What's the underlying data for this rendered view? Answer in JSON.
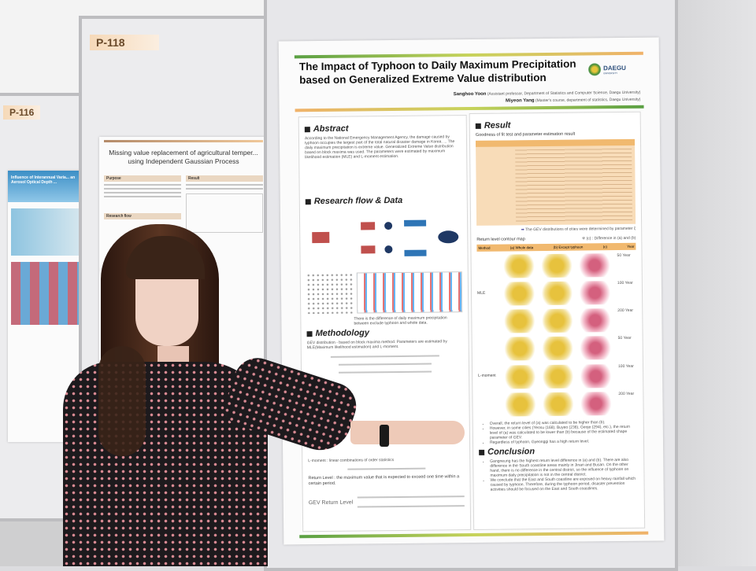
{
  "scene": {
    "colors": {
      "wall": "#dcdcdf",
      "board": "#ececee",
      "poster_accent_green": "#5aa043",
      "poster_accent_orange": "#f0b26a",
      "table_orange": "#f1b96f",
      "hair": "#3a2418",
      "dress": "#1d1a1d"
    }
  },
  "boards": [
    {
      "label": "P-116",
      "poster_title": "Influence of Interannual Varia... an Aerosol Optical Depth ..."
    },
    {
      "label": "P-118",
      "poster_title": "Missing value replacement of agricultural temper... using Independent Gaussian Process",
      "sections": [
        "Purpose",
        "Result",
        "Research flow"
      ]
    }
  ],
  "poster": {
    "title_line1": "The Impact of Typhoon to Daily Maximum Precipitation",
    "title_line2": "based on Generalized Extreme Value distribution",
    "logo": "DAEGU",
    "logo_sub": "UNIVERSITY",
    "author1_name": "Sanghoo Yoon",
    "author1_aff": "(Assistant professor, Department of Statistics and Computer Science, Daegu University)",
    "author2_name": "Miyeon Yang",
    "author2_aff": "(Master's course, department of statistics, Daegu University)",
    "sections": {
      "abstract": "Abstract",
      "abstract_text": "According to the National Emergency Management Agency, the damage caused by typhoon occupies the largest part of the total natural disaster damage in Korea. ... The daily maximum precipitation is extreme value. Generalized Extreme Value distribution based on block maxima was used. The parameters were estimated by maximum likelihood estimation (MLE) and L-moment estimation.",
      "research_flow": "Research flow & Data",
      "flow_note": "There is the difference of daily maximum precipitation between exclude typhoon and whole data.",
      "methodology": "Methodology",
      "gev": "GEV distribution - based on block maxima method. Parameters are estimated by MLE(Maximum likelihood estimation) and L-moment.",
      "lmoment": "L-moment : linear combinations of order statistics",
      "return_level": "Return Level : the maximum value that is expected to exceed one time within a certain period.",
      "gev_return_level": "GEV Return Level",
      "result": "Result",
      "gof": "Goodness of fit test and parameter estimation result",
      "gev_note": "The GEV distributions of cities were determined by parameter ξ",
      "contour": "Return level contour map",
      "contour_note": "※ (c) : Difference in (a) and (b)",
      "contour_headers": [
        "Method",
        "(a) Whole data",
        "(b) Except typhoon",
        "(c)",
        "Year"
      ],
      "methods": [
        "MLE",
        "L-moment"
      ],
      "years": [
        "50 Year",
        "100 Year",
        "200 Year",
        "50 Year",
        "100 Year",
        "200 Year"
      ],
      "bullets": [
        "Overall, the return level of (a) was calculated to be higher than (b).",
        "However, in some cities (Yeosu (168), Buyeo (236), Geoje (294), etc.), the return level of (a) was calculated to be lower than (b) because of the estimated shape parameter of GEV.",
        "Regardless of typhoon, Gyeonggi has a high return level."
      ],
      "conclusion": "Conclusion",
      "conclusion_items": [
        "Gangneung has the highest return level difference in (a) and (b). There are also difference in the South coastline areas mainly in Jinan and Busan. On the other hand, there is no difference in the central district, so the influence of typhoon on maximum daily precipitation is not in the central district.",
        "We conclude that the East and South coastline are exposed on heavy rainfall which caused by typhoon. Therefore, during the typhoon period, disaster prevention activities should be focused on the East and South coastlines."
      ]
    }
  }
}
